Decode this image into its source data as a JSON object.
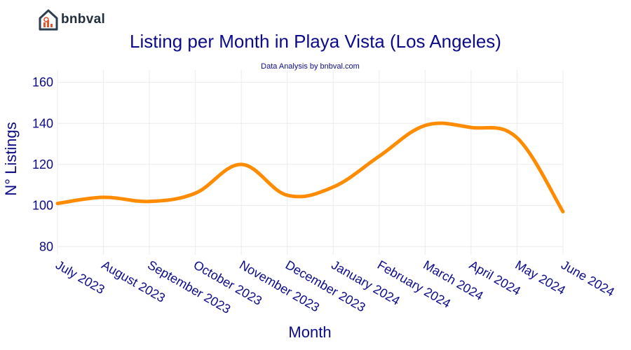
{
  "branding": {
    "logo_text": "bnbval",
    "colors": {
      "logo_dark": "#2c3e50",
      "logo_accent": "#e4572e"
    }
  },
  "chart_data": {
    "type": "line",
    "title": "Listing per Month in Playa Vista (Los Angeles)",
    "subtitle": "Data Analysis by bnbval.com",
    "xlabel": "Month",
    "ylabel": "N° Listings",
    "categories": [
      "July 2023",
      "August 2023",
      "September 2023",
      "October 2023",
      "November 2023",
      "December 2023",
      "January 2024",
      "February 2024",
      "March 2024",
      "April 2024",
      "May 2024",
      "June 2024"
    ],
    "series": [
      {
        "values": [
          101,
          104,
          102,
          106,
          120,
          105,
          109,
          124,
          139,
          138,
          133,
          97
        ],
        "color": "#ff8c00"
      }
    ],
    "ylim": [
      76,
      166
    ],
    "yticks": [
      80,
      100,
      120,
      140,
      160
    ],
    "grid": true,
    "colors": {
      "text": "#0b0b8a",
      "grid": "#ececec",
      "line": "#ff8c00"
    }
  }
}
